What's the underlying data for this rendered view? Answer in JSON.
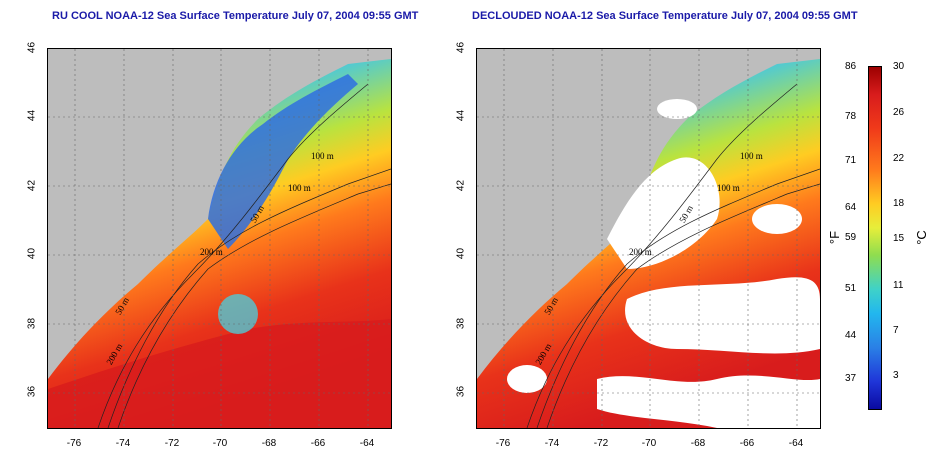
{
  "maps": [
    {
      "title": "RU COOL NOAA-12 Sea Surface Temperature July 07, 2004 09:55 GMT",
      "contour_labels": [
        "100 m",
        "100 m",
        "50 m",
        "200 m",
        "50 m",
        "200 m"
      ]
    },
    {
      "title": "DECLOUDED NOAA-12 Sea Surface Temperature July 07, 2004 09:55 GMT",
      "contour_labels": [
        "100 m",
        "100 m",
        "50 m",
        "200 m",
        "50 m",
        "200 m"
      ]
    }
  ],
  "axes": {
    "lat_ticks": [
      "46",
      "44",
      "42",
      "40",
      "38",
      "36"
    ],
    "lon_ticks": [
      "-76",
      "-74",
      "-72",
      "-70",
      "-68",
      "-66",
      "-64"
    ]
  },
  "colorbar": {
    "fahrenheit_ticks": [
      "86",
      "78",
      "71",
      "64",
      "59",
      "51",
      "44",
      "37"
    ],
    "celsius_ticks": [
      "30",
      "26",
      "22",
      "18",
      "15",
      "11",
      "7",
      "3"
    ],
    "fahrenheit_unit": "°F",
    "celsius_unit": "°C"
  },
  "colors": {
    "land": "#bdbdbd",
    "cloud": "#ffffff",
    "title": "#1a1aa8"
  }
}
